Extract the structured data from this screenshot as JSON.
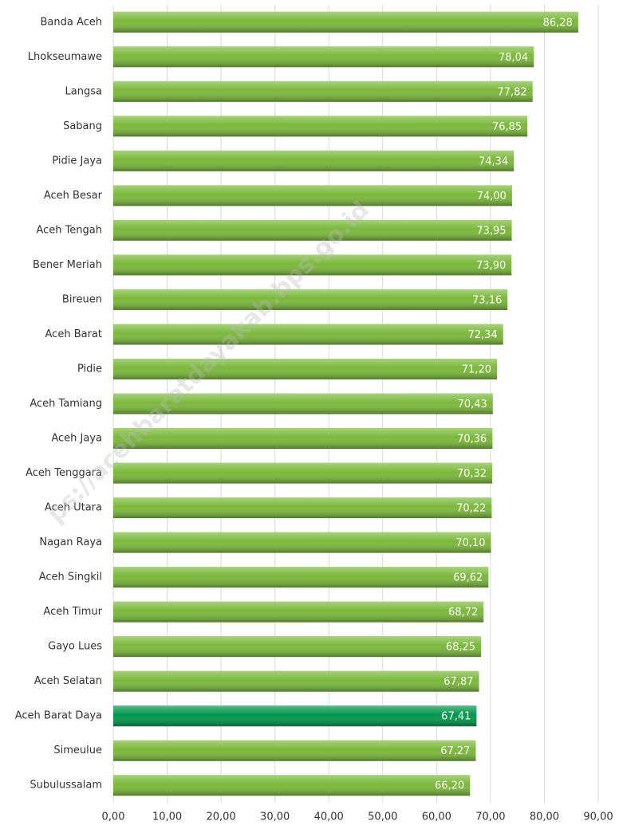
{
  "chart_data": {
    "type": "bar",
    "orientation": "horizontal",
    "categories": [
      "Banda Aceh",
      "Lhokseumawe",
      "Langsa",
      "Sabang",
      "Pidie Jaya",
      "Aceh Besar",
      "Aceh Tengah",
      "Bener Meriah",
      "Bireuen",
      "Aceh Barat",
      "Pidie",
      "Aceh Tamiang",
      "Aceh Jaya",
      "Aceh Tenggara",
      "Aceh Utara",
      "Nagan Raya",
      "Aceh Singkil",
      "Aceh Timur",
      "Gayo Lues",
      "Aceh Selatan",
      "Aceh Barat Daya",
      "Simeulue",
      "Subulussalam"
    ],
    "values": [
      86.28,
      78.04,
      77.82,
      76.85,
      74.34,
      74.0,
      73.95,
      73.9,
      73.16,
      72.34,
      71.2,
      70.43,
      70.36,
      70.32,
      70.22,
      70.1,
      69.62,
      68.72,
      68.25,
      67.87,
      67.41,
      67.27,
      66.2
    ],
    "value_labels": [
      "86,28",
      "78,04",
      "77,82",
      "76,85",
      "74,34",
      "74,00",
      "73,95",
      "73,90",
      "73,16",
      "72,34",
      "71,20",
      "70,43",
      "70,36",
      "70,32",
      "70,22",
      "70,10",
      "69,62",
      "68,72",
      "68,25",
      "67,87",
      "67,41",
      "67,27",
      "66,20"
    ],
    "colors": [
      "#7ab83a",
      "#7ab83a",
      "#7ab83a",
      "#7ab83a",
      "#7ab83a",
      "#7ab83a",
      "#7ab83a",
      "#7ab83a",
      "#7ab83a",
      "#7ab83a",
      "#7ab83a",
      "#7ab83a",
      "#7ab83a",
      "#7ab83a",
      "#7ab83a",
      "#7ab83a",
      "#7ab83a",
      "#7ab83a",
      "#7ab83a",
      "#7ab83a",
      "#00964a",
      "#7ab83a",
      "#7ab83a"
    ],
    "xlim": [
      0,
      90
    ],
    "xticks": [
      {
        "value": 0,
        "label": "0,00"
      },
      {
        "value": 10,
        "label": "10,00"
      },
      {
        "value": 20,
        "label": "20,00"
      },
      {
        "value": 30,
        "label": "30,00"
      },
      {
        "value": 40,
        "label": "40,00"
      },
      {
        "value": 50,
        "label": "50,00"
      },
      {
        "value": 60,
        "label": "60,00"
      },
      {
        "value": 70,
        "label": "70,00"
      },
      {
        "value": 80,
        "label": "80,00"
      },
      {
        "value": 90,
        "label": "90,00"
      }
    ],
    "grid": true,
    "watermark": "ps://acehbaratdayakab.bps.go.id"
  }
}
